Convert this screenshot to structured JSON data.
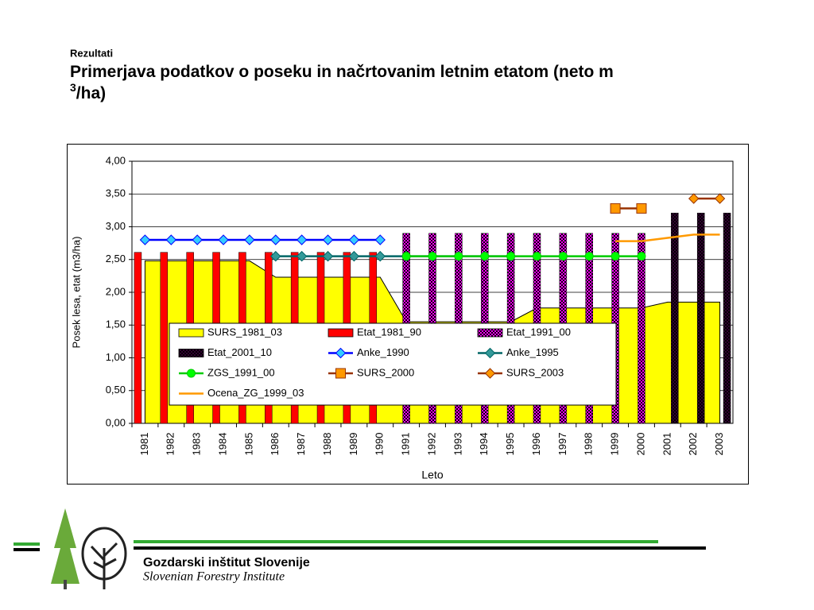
{
  "header": {
    "section": "Rezultati",
    "title_main": "Primerjava podatkov o poseku in načrtovanim letnim etatom (neto m",
    "title_sup": "3",
    "title_end": "/ha)"
  },
  "chart_data": {
    "type": "combo",
    "ylabel": "Posek lesa, etat  (m3/ha)",
    "xlabel": "Leto",
    "categories": [
      "1981",
      "1982",
      "1983",
      "1984",
      "1985",
      "1986",
      "1987",
      "1988",
      "1989",
      "1990",
      "1991",
      "1992",
      "1993",
      "1994",
      "1995",
      "1996",
      "1997",
      "1998",
      "1999",
      "2000",
      "2001",
      "2002",
      "2003"
    ],
    "ylim": [
      0,
      4
    ],
    "yticks": [
      {
        "value": 0,
        "label": "0,00"
      },
      {
        "value": 0.5,
        "label": "0,50"
      },
      {
        "value": 1,
        "label": "1,00"
      },
      {
        "value": 1.5,
        "label": "1,50"
      },
      {
        "value": 2,
        "label": "2,00"
      },
      {
        "value": 2.5,
        "label": "2,50"
      },
      {
        "value": 3,
        "label": "3,00"
      },
      {
        "value": 3.5,
        "label": "3,50"
      },
      {
        "value": 4,
        "label": "4,00"
      }
    ],
    "grid": true,
    "series": [
      {
        "name": "SURS_1981_03",
        "type": "area",
        "color": "#ffff00",
        "values": [
          2.48,
          2.48,
          2.48,
          2.48,
          2.48,
          2.23,
          2.23,
          2.23,
          2.23,
          2.23,
          1.55,
          1.55,
          1.55,
          1.55,
          1.55,
          1.76,
          1.76,
          1.76,
          1.76,
          1.76,
          1.85,
          1.85,
          1.85
        ]
      },
      {
        "name": "Etat_1981_90",
        "type": "bar",
        "color": "#ff0000",
        "pattern": false,
        "values": [
          2.61,
          2.61,
          2.61,
          2.61,
          2.61,
          2.61,
          2.61,
          2.61,
          2.61,
          2.61,
          null,
          null,
          null,
          null,
          null,
          null,
          null,
          null,
          null,
          null,
          null,
          null,
          null
        ]
      },
      {
        "name": "Etat_1991_00",
        "type": "bar",
        "color": "#ff00ff",
        "pattern": true,
        "values": [
          null,
          null,
          null,
          null,
          null,
          null,
          null,
          null,
          null,
          null,
          2.9,
          2.9,
          2.9,
          2.9,
          2.9,
          2.9,
          2.9,
          2.9,
          2.9,
          2.9,
          null,
          null,
          null
        ]
      },
      {
        "name": "Etat_2001_10",
        "type": "bar",
        "color": "#330033",
        "pattern": true,
        "values": [
          null,
          null,
          null,
          null,
          null,
          null,
          null,
          null,
          null,
          null,
          null,
          null,
          null,
          null,
          null,
          null,
          null,
          null,
          null,
          null,
          3.21,
          3.21,
          3.21
        ]
      },
      {
        "name": "Anke_1990",
        "type": "line",
        "color": "#0000ff",
        "marker": "diamond",
        "marker_color": "#33ccff",
        "values": [
          2.8,
          2.8,
          2.8,
          2.8,
          2.8,
          2.8,
          2.8,
          2.8,
          2.8,
          2.8,
          null,
          null,
          null,
          null,
          null,
          null,
          null,
          null,
          null,
          null,
          null,
          null,
          null
        ]
      },
      {
        "name": "Anke_1995",
        "type": "line",
        "color": "#006666",
        "marker": "diamond",
        "marker_color": "#339999",
        "values": [
          null,
          null,
          null,
          null,
          null,
          2.55,
          2.55,
          2.55,
          2.55,
          2.55,
          2.55,
          2.55,
          2.55,
          2.55,
          2.55,
          null,
          null,
          null,
          null,
          null,
          null,
          null,
          null
        ]
      },
      {
        "name": "ZGS_1991_00",
        "type": "line",
        "color": "#00cc00",
        "marker": "circle",
        "marker_color": "#00ff00",
        "values": [
          null,
          null,
          null,
          null,
          null,
          null,
          null,
          null,
          null,
          null,
          2.55,
          2.55,
          2.55,
          2.55,
          2.55,
          2.55,
          2.55,
          2.55,
          2.55,
          2.55,
          null,
          null,
          null
        ]
      },
      {
        "name": "SURS_2000",
        "type": "line",
        "color": "#993300",
        "marker": "square",
        "marker_color": "#ff9900",
        "values": [
          null,
          null,
          null,
          null,
          null,
          null,
          null,
          null,
          null,
          null,
          null,
          null,
          null,
          null,
          null,
          null,
          null,
          null,
          3.28,
          3.28,
          null,
          null,
          null
        ]
      },
      {
        "name": "SURS_2003",
        "type": "line",
        "color": "#993300",
        "marker": "diamond",
        "marker_color": "#ff9900",
        "values": [
          null,
          null,
          null,
          null,
          null,
          null,
          null,
          null,
          null,
          null,
          null,
          null,
          null,
          null,
          null,
          null,
          null,
          null,
          null,
          null,
          null,
          3.43,
          3.43
        ]
      },
      {
        "name": "Ocena_ZG_1999_03",
        "type": "line",
        "color": "#ff9900",
        "marker": "none",
        "values": [
          null,
          null,
          null,
          null,
          null,
          null,
          null,
          null,
          null,
          null,
          null,
          null,
          null,
          null,
          null,
          null,
          null,
          null,
          2.78,
          2.78,
          2.83,
          2.88,
          2.88
        ]
      }
    ]
  },
  "footer": {
    "org": "Gozdarski inštitut Slovenije",
    "org_en": "Slovenian Forestry Institute"
  }
}
